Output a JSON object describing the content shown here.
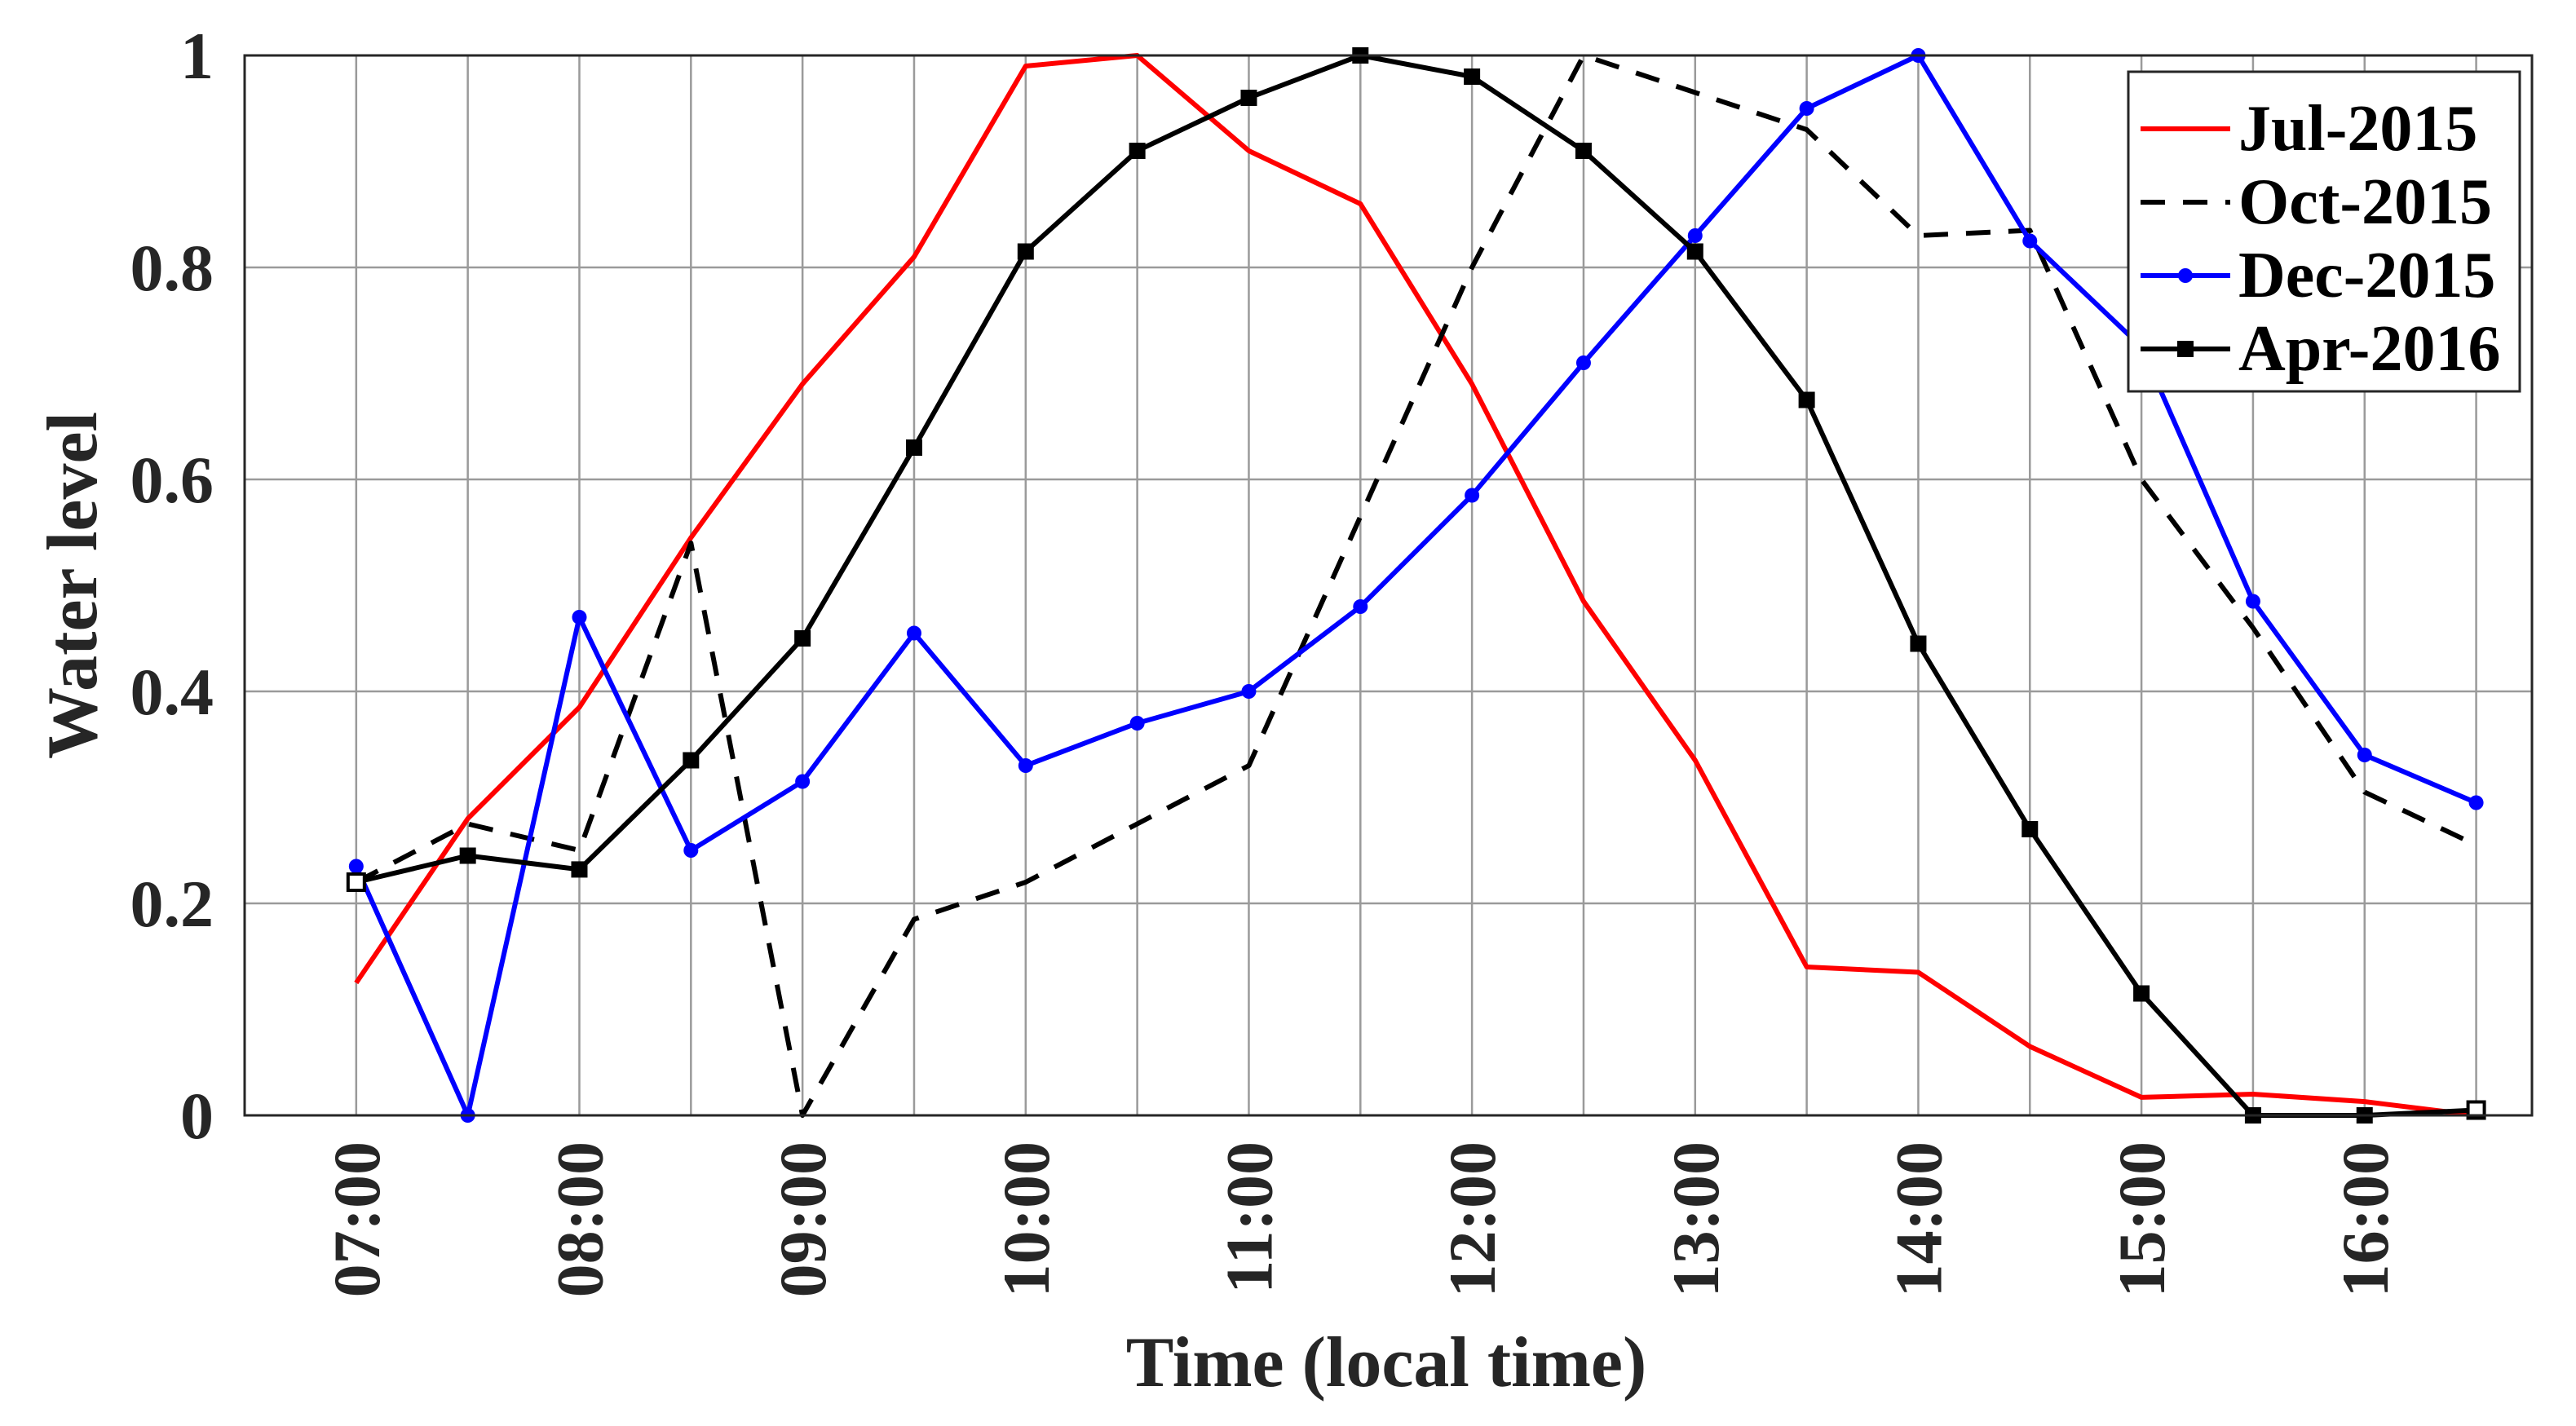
{
  "chart_data": {
    "type": "line",
    "xlabel": "Time (local time)",
    "ylabel": "Water level",
    "x": [
      7.0,
      7.5,
      8.0,
      8.5,
      9.0,
      9.5,
      10.0,
      10.5,
      11.0,
      11.5,
      12.0,
      12.5,
      13.0,
      13.5,
      14.0,
      14.5,
      15.0,
      15.5,
      16.0,
      16.5
    ],
    "xlim": [
      6.5,
      16.75
    ],
    "ylim": [
      0,
      1
    ],
    "xticks": [
      7,
      8,
      9,
      10,
      11,
      12,
      13,
      14,
      15,
      16
    ],
    "xtick_labels": [
      "07:00",
      "08:00",
      "09:00",
      "10:00",
      "11:00",
      "12:00",
      "13:00",
      "14:00",
      "15:00",
      "16:00"
    ],
    "yticks": [
      0,
      0.2,
      0.4,
      0.6,
      0.8,
      1
    ],
    "ytick_labels": [
      "0",
      "0.2",
      "0.4",
      "0.6",
      "0.8",
      "1"
    ],
    "grid": true,
    "legend_position": "top-right",
    "series": [
      {
        "name": "Jul-2015",
        "color": "#ff0000",
        "dash": "solid",
        "marker": "none",
        "values": [
          0.125,
          0.28,
          0.385,
          0.545,
          0.69,
          0.81,
          0.99,
          1.0,
          0.91,
          0.86,
          0.69,
          0.485,
          0.335,
          0.14,
          0.135,
          0.065,
          0.017,
          0.02,
          0.013,
          0.0
        ]
      },
      {
        "name": "Oct-2015",
        "color": "#000000",
        "dash": "dashed",
        "marker": "none",
        "values": [
          0.22,
          0.275,
          0.25,
          0.54,
          0.0,
          0.185,
          0.22,
          0.275,
          0.33,
          0.565,
          0.8,
          1.0,
          0.965,
          0.93,
          0.83,
          0.835,
          0.6,
          0.46,
          0.305,
          0.255
        ]
      },
      {
        "name": "Dec-2015",
        "color": "#0000ff",
        "dash": "solid",
        "marker": "circle",
        "values": [
          0.235,
          0.0,
          0.47,
          0.25,
          0.315,
          0.455,
          0.33,
          0.37,
          0.4,
          0.48,
          0.585,
          0.71,
          0.83,
          0.95,
          1.0,
          0.825,
          0.725,
          0.485,
          0.34,
          0.295
        ]
      },
      {
        "name": "Apr-2016",
        "color": "#000000",
        "dash": "solid",
        "marker": "square",
        "values": [
          0.22,
          0.245,
          0.232,
          0.335,
          0.45,
          0.63,
          0.815,
          0.91,
          0.96,
          1.0,
          0.98,
          0.91,
          0.815,
          0.675,
          0.445,
          0.27,
          0.115,
          0.0,
          0.0,
          0.005
        ]
      }
    ]
  }
}
